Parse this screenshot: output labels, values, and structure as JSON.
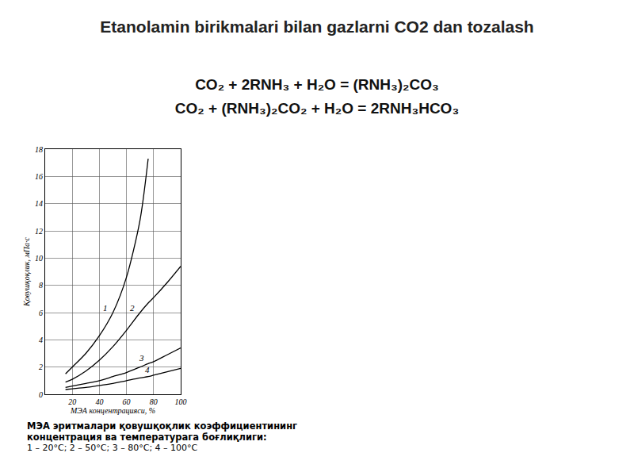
{
  "slide": {
    "title": "Etanolamin birikmalari bilan gazlarni CO2 dan tozalash",
    "equations": [
      "CO₂ + 2RNH₃ + H₂O = (RNH₃)₂CO₃",
      "CO₂ + (RNH₃)₂CO₂ + H₂O = 2RNH₃HCO₃"
    ],
    "caption": [
      "МЭА эритмалари қовушқоқлик коэффициентининг концентрация ва температурага боғлиқлиги:",
      "1 – 20°C;   2 – 50°C;   3 – 80°C;   4 – 100°C"
    ]
  },
  "chart_data": {
    "type": "line",
    "x_label": "МЭА концентрацияси, %",
    "y_label": "Қовушқоқлик, мПа·с",
    "x": [
      15,
      20,
      30,
      40,
      50,
      60,
      70,
      76,
      80,
      90,
      100
    ],
    "series": [
      {
        "name": "1",
        "color": "#000000",
        "line_style": "solid",
        "values": [
          1.5,
          2.0,
          3.0,
          4.3,
          6.0,
          8.6,
          12.8,
          17.3,
          null,
          null,
          null
        ]
      },
      {
        "name": "2",
        "color": "#000000",
        "line_style": "solid",
        "values": [
          0.9,
          1.1,
          1.7,
          2.5,
          3.5,
          4.7,
          6.0,
          6.7,
          7.1,
          8.2,
          9.4
        ]
      },
      {
        "name": "3",
        "color": "#000000",
        "line_style": "solid",
        "values": [
          0.5,
          0.6,
          0.8,
          1.0,
          1.3,
          1.6,
          2.0,
          2.25,
          2.4,
          2.9,
          3.4
        ]
      },
      {
        "name": "4",
        "color": "#000000",
        "line_style": "solid",
        "values": [
          0.35,
          0.4,
          0.5,
          0.65,
          0.8,
          1.0,
          1.2,
          1.3,
          1.4,
          1.65,
          1.9
        ]
      }
    ],
    "xlim": [
      0,
      100
    ],
    "xticks": [
      20,
      40,
      60,
      80,
      100
    ],
    "ylim": [
      0,
      18
    ],
    "yticks": [
      0,
      2,
      4,
      6,
      8,
      10,
      12,
      14,
      16,
      18
    ],
    "grid": true
  }
}
